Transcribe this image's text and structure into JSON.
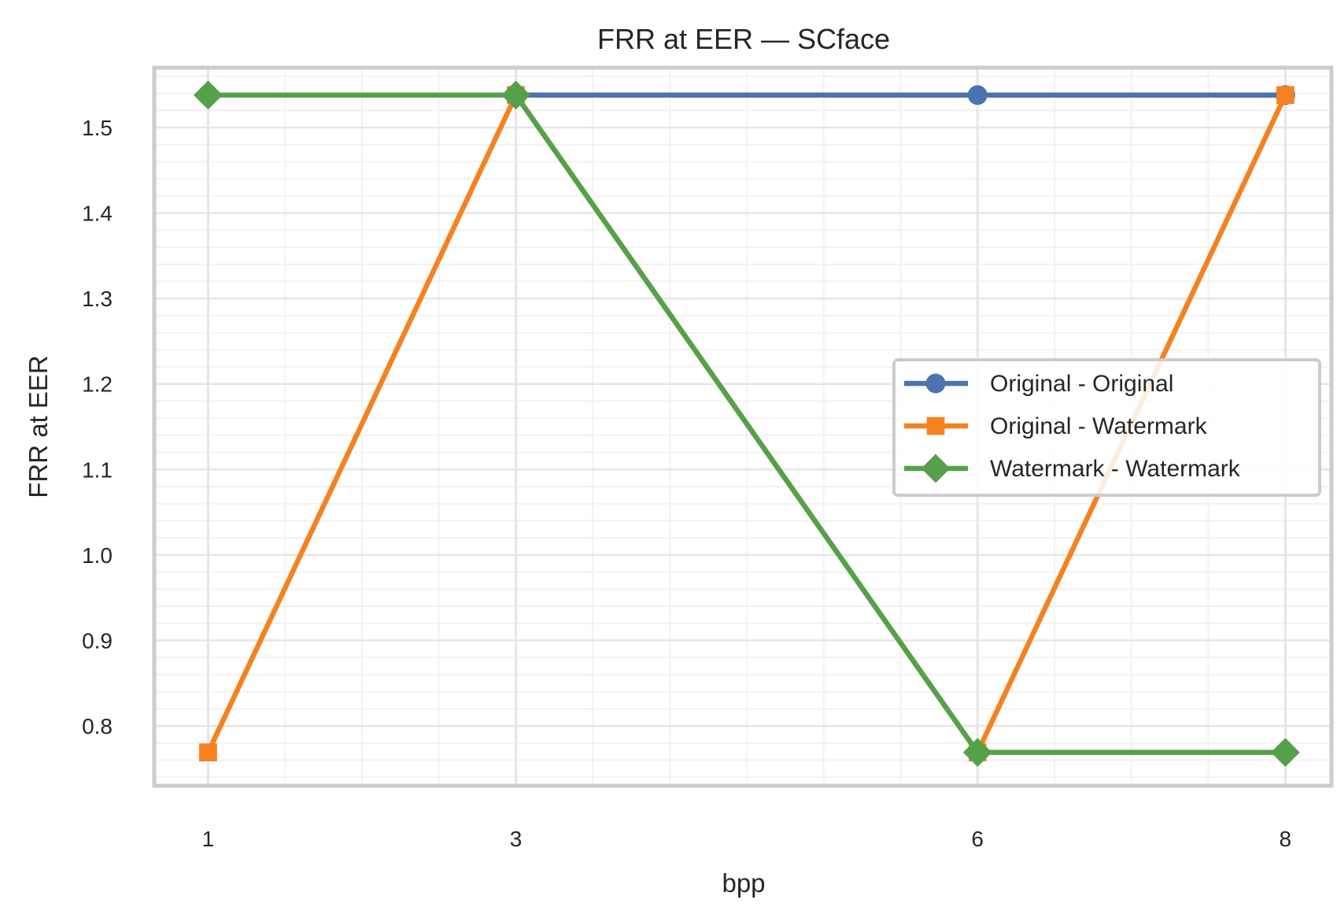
{
  "chart_data": {
    "type": "line",
    "title": "FRR at EER — SCface",
    "xlabel": "bpp",
    "ylabel": "FRR at EER",
    "x": [
      1,
      3,
      6,
      8
    ],
    "x_tick_labels": [
      "1",
      "3",
      "6",
      "8"
    ],
    "xlim": [
      0.65,
      8.3
    ],
    "ylim": [
      0.73,
      1.57
    ],
    "y_ticks": [
      0.8,
      0.9,
      1.0,
      1.1,
      1.2,
      1.3,
      1.4,
      1.5
    ],
    "y_tick_labels": [
      "0.8",
      "0.9",
      "1.0",
      "1.1",
      "1.2",
      "1.3",
      "1.4",
      "1.5"
    ],
    "grid": true,
    "legend_position": "center-right",
    "series": [
      {
        "name": "Original - Original",
        "values": [
          1.538,
          1.538,
          1.538,
          1.538
        ],
        "color": "#4c72b0",
        "marker": "circle"
      },
      {
        "name": "Original - Watermark",
        "values": [
          0.769,
          1.538,
          0.769,
          1.538
        ],
        "color": "#f5821f",
        "marker": "square"
      },
      {
        "name": "Watermark - Watermark",
        "values": [
          1.538,
          1.538,
          0.769,
          0.769
        ],
        "color": "#55a14a",
        "marker": "diamond"
      }
    ]
  }
}
